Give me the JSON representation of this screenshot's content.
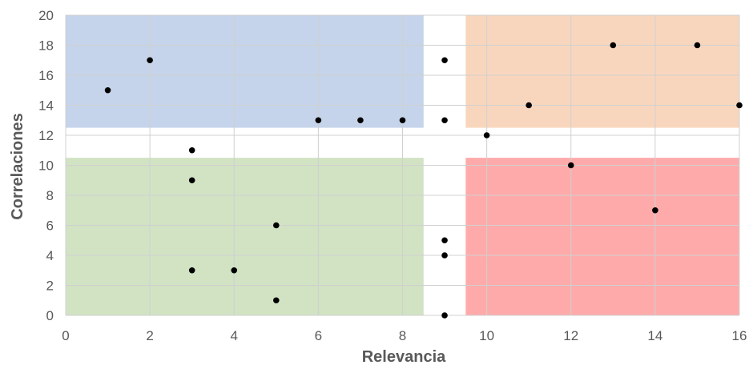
{
  "chart_data": {
    "type": "scatter",
    "title": "",
    "xlabel": "Relevancia",
    "ylabel": "Correlaciones",
    "xlim": [
      0,
      16
    ],
    "ylim": [
      0,
      20
    ],
    "x_ticks": [
      0,
      2,
      4,
      6,
      8,
      10,
      12,
      14,
      16
    ],
    "y_ticks": [
      0,
      2,
      4,
      6,
      8,
      10,
      12,
      14,
      16,
      18,
      20
    ],
    "grid": true,
    "legend": "none",
    "marker_color": "#000000",
    "regions": [
      {
        "x": [
          0,
          8.5
        ],
        "y": [
          12.5,
          20
        ],
        "color": "#c5d4ea"
      },
      {
        "x": [
          9.5,
          16
        ],
        "y": [
          12.5,
          20
        ],
        "color": "#f8d6bd"
      },
      {
        "x": [
          0,
          8.5
        ],
        "y": [
          0,
          10.5
        ],
        "color": "#d1e3c3"
      },
      {
        "x": [
          9.5,
          16
        ],
        "y": [
          0,
          10.5
        ],
        "color": "#ffaaaa"
      }
    ],
    "points": [
      {
        "x": 1,
        "y": 15
      },
      {
        "x": 2,
        "y": 17
      },
      {
        "x": 6,
        "y": 13
      },
      {
        "x": 7,
        "y": 13
      },
      {
        "x": 8,
        "y": 13
      },
      {
        "x": 9,
        "y": 17
      },
      {
        "x": 9,
        "y": 13
      },
      {
        "x": 11,
        "y": 14
      },
      {
        "x": 13,
        "y": 18
      },
      {
        "x": 15,
        "y": 18
      },
      {
        "x": 16,
        "y": 14
      },
      {
        "x": 10,
        "y": 12
      },
      {
        "x": 3,
        "y": 11
      },
      {
        "x": 3,
        "y": 9
      },
      {
        "x": 12,
        "y": 10
      },
      {
        "x": 14,
        "y": 7
      },
      {
        "x": 5,
        "y": 6
      },
      {
        "x": 9,
        "y": 5
      },
      {
        "x": 9,
        "y": 4
      },
      {
        "x": 3,
        "y": 3
      },
      {
        "x": 4,
        "y": 3
      },
      {
        "x": 5,
        "y": 1
      },
      {
        "x": 9,
        "y": 0
      }
    ]
  }
}
